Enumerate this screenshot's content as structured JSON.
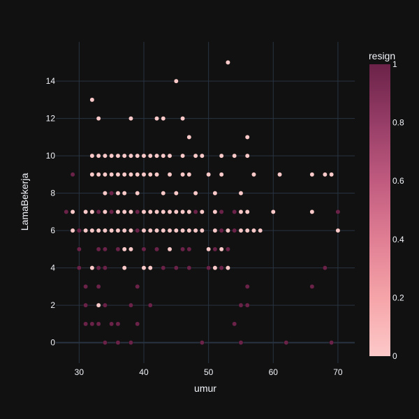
{
  "chart_data": {
    "type": "scatter",
    "xlabel": "umur",
    "ylabel": "LamaBekerja",
    "xlim": [
      26.4,
      72.6
    ],
    "ylim": [
      -1.1,
      16.1
    ],
    "xticks": [
      30,
      40,
      50,
      60,
      70
    ],
    "yticks": [
      0,
      2,
      4,
      6,
      8,
      10,
      12,
      14
    ],
    "grid": true,
    "colorbar": {
      "title": "resign",
      "range": [
        0,
        1
      ],
      "ticks": [
        0,
        0.2,
        0.4,
        0.6,
        0.8,
        1
      ],
      "tick_labels": [
        "0",
        "0.2",
        "0.4",
        "0.6",
        "0.8",
        "1"
      ],
      "color_low": "#fdc9c9",
      "color_high": "#6b2248"
    },
    "points_resign_0": [
      [
        53,
        15
      ],
      [
        45,
        14
      ],
      [
        32,
        13
      ],
      [
        33,
        12
      ],
      [
        38,
        12
      ],
      [
        42,
        12
      ],
      [
        43,
        12
      ],
      [
        46,
        12
      ],
      [
        47,
        11
      ],
      [
        56,
        11
      ],
      [
        32,
        10
      ],
      [
        33,
        10
      ],
      [
        34,
        10
      ],
      [
        35,
        10
      ],
      [
        36,
        10
      ],
      [
        37,
        10
      ],
      [
        38,
        10
      ],
      [
        39,
        10
      ],
      [
        40,
        10
      ],
      [
        41,
        10
      ],
      [
        42,
        10
      ],
      [
        43,
        10
      ],
      [
        44,
        10
      ],
      [
        46,
        10
      ],
      [
        48,
        10
      ],
      [
        49,
        10
      ],
      [
        52,
        10
      ],
      [
        54,
        10
      ],
      [
        56,
        10
      ],
      [
        32,
        9
      ],
      [
        33,
        9
      ],
      [
        34,
        9
      ],
      [
        35,
        9
      ],
      [
        36,
        9
      ],
      [
        37,
        9
      ],
      [
        38,
        9
      ],
      [
        39,
        9
      ],
      [
        40,
        9
      ],
      [
        41,
        9
      ],
      [
        42,
        9
      ],
      [
        44,
        9
      ],
      [
        46,
        9
      ],
      [
        47,
        9
      ],
      [
        50,
        9
      ],
      [
        52,
        9
      ],
      [
        57,
        9
      ],
      [
        61,
        9
      ],
      [
        66,
        9
      ],
      [
        68,
        9
      ],
      [
        69,
        9
      ],
      [
        34,
        8
      ],
      [
        36,
        8
      ],
      [
        37,
        8
      ],
      [
        39,
        8
      ],
      [
        43,
        8
      ],
      [
        45,
        8
      ],
      [
        48,
        8
      ],
      [
        51,
        8
      ],
      [
        55,
        8
      ],
      [
        29,
        7
      ],
      [
        31,
        7
      ],
      [
        32,
        7
      ],
      [
        34,
        7
      ],
      [
        36,
        7
      ],
      [
        37,
        7
      ],
      [
        38,
        7
      ],
      [
        40,
        7
      ],
      [
        41,
        7
      ],
      [
        42,
        7
      ],
      [
        43,
        7
      ],
      [
        44,
        7
      ],
      [
        45,
        7
      ],
      [
        46,
        7
      ],
      [
        47,
        7
      ],
      [
        49,
        7
      ],
      [
        51,
        7
      ],
      [
        55,
        7
      ],
      [
        56,
        7
      ],
      [
        60,
        7
      ],
      [
        66,
        7
      ],
      [
        29,
        6
      ],
      [
        31,
        6
      ],
      [
        32,
        6
      ],
      [
        33,
        6
      ],
      [
        34,
        6
      ],
      [
        35,
        6
      ],
      [
        36,
        6
      ],
      [
        37,
        6
      ],
      [
        38,
        6
      ],
      [
        40,
        6
      ],
      [
        41,
        6
      ],
      [
        42,
        6
      ],
      [
        43,
        6
      ],
      [
        44,
        6
      ],
      [
        45,
        6
      ],
      [
        46,
        6
      ],
      [
        47,
        6
      ],
      [
        48,
        6
      ],
      [
        49,
        6
      ],
      [
        51,
        6
      ],
      [
        53,
        6
      ],
      [
        55,
        6
      ],
      [
        56,
        6
      ],
      [
        57,
        6
      ],
      [
        58,
        6
      ],
      [
        70,
        6
      ],
      [
        37,
        5
      ],
      [
        38,
        5
      ],
      [
        44,
        5
      ],
      [
        50,
        5
      ],
      [
        52,
        5
      ],
      [
        32,
        4
      ],
      [
        37,
        4
      ],
      [
        40,
        4
      ],
      [
        41,
        4
      ],
      [
        51,
        4
      ],
      [
        53,
        4
      ],
      [
        33,
        2
      ]
    ],
    "points_resign_1": [
      [
        29,
        9
      ],
      [
        35,
        8
      ],
      [
        36,
        8
      ],
      [
        37,
        8
      ],
      [
        28,
        7
      ],
      [
        33,
        7
      ],
      [
        35,
        7
      ],
      [
        36,
        7
      ],
      [
        37,
        7
      ],
      [
        39,
        7
      ],
      [
        48,
        7
      ],
      [
        52,
        7
      ],
      [
        54,
        7
      ],
      [
        70,
        7
      ],
      [
        30,
        6
      ],
      [
        39,
        6
      ],
      [
        52,
        6
      ],
      [
        54,
        6
      ],
      [
        30,
        5
      ],
      [
        33,
        5
      ],
      [
        34,
        5
      ],
      [
        36,
        5
      ],
      [
        40,
        5
      ],
      [
        42,
        5
      ],
      [
        46,
        5
      ],
      [
        47,
        5
      ],
      [
        51,
        5
      ],
      [
        53,
        5
      ],
      [
        30,
        4
      ],
      [
        33,
        4
      ],
      [
        34,
        4
      ],
      [
        43,
        4
      ],
      [
        45,
        4
      ],
      [
        47,
        4
      ],
      [
        50,
        4
      ],
      [
        52,
        4
      ],
      [
        68,
        4
      ],
      [
        31,
        3
      ],
      [
        33,
        3
      ],
      [
        39,
        3
      ],
      [
        56,
        3
      ],
      [
        66,
        3
      ],
      [
        31,
        2
      ],
      [
        34,
        2
      ],
      [
        38,
        2
      ],
      [
        41,
        2
      ],
      [
        55,
        2
      ],
      [
        56,
        2
      ],
      [
        31,
        1
      ],
      [
        32,
        1
      ],
      [
        33,
        1
      ],
      [
        35,
        1
      ],
      [
        36,
        1
      ],
      [
        39,
        1
      ],
      [
        54,
        1
      ],
      [
        34,
        0
      ],
      [
        36,
        0
      ],
      [
        38,
        0
      ],
      [
        49,
        0
      ],
      [
        55,
        0
      ],
      [
        62,
        0
      ],
      [
        69,
        0
      ]
    ]
  }
}
